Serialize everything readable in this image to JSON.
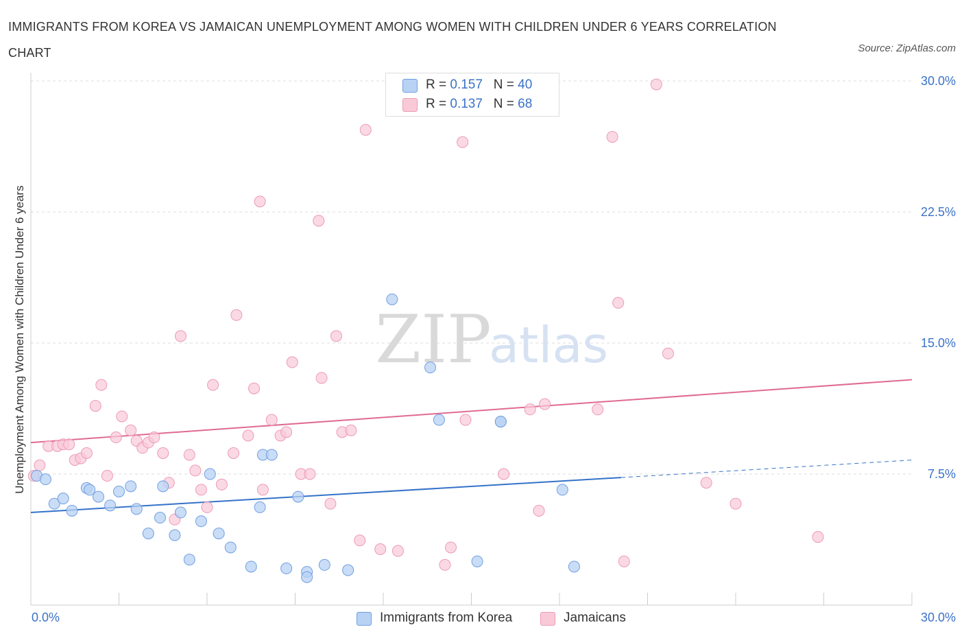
{
  "title": "IMMIGRANTS FROM KOREA VS JAMAICAN UNEMPLOYMENT AMONG WOMEN WITH CHILDREN UNDER 6 YEARS CORRELATION CHART",
  "source": "Source: ZipAtlas.com",
  "watermark": {
    "zip": "ZIP",
    "atlas": "atlas"
  },
  "legend": {
    "korea": {
      "r_label": "R =",
      "r_value": "0.157",
      "n_label": "N =",
      "n_value": "40"
    },
    "jamaica": {
      "r_label": "R =",
      "r_value": "0.137",
      "n_label": "N =",
      "n_value": "68"
    }
  },
  "colors": {
    "korea_fill": "#b8d2f4",
    "korea_stroke": "#6f9ee0",
    "korea_line": "#3472c8",
    "jamaica_fill": "#f9c9d8",
    "jamaica_stroke": "#ec9ab4",
    "jamaica_line": "#e06a92",
    "grid": "#dddddd",
    "tick_text": "#3a72c8"
  },
  "chart_data": {
    "type": "scatter",
    "title": "IMMIGRANTS FROM KOREA VS JAMAICAN UNEMPLOYMENT AMONG WOMEN WITH CHILDREN UNDER 6 YEARS CORRELATION CHART",
    "xlabel": "",
    "ylabel": "Unemployment Among Women with Children Under 6 years",
    "xlim": [
      0,
      30
    ],
    "ylim": [
      0,
      30
    ],
    "x_tick_labels": [
      "0.0%",
      "30.0%"
    ],
    "y_tick_labels": [
      "7.5%",
      "15.0%",
      "22.5%",
      "30.0%"
    ],
    "y_ticks": [
      7.5,
      15.0,
      22.5,
      30.0
    ],
    "grid": true,
    "legend_position": "top-center",
    "series": [
      {
        "name": "Immigrants from Korea",
        "r": 0.157,
        "n": 40,
        "trend": {
          "x0": 0,
          "y0": 5.3,
          "x1": 20.1,
          "y1": 7.3,
          "dashed_to_x": 30,
          "dashed_to_y": 8.3
        },
        "points": [
          [
            0.2,
            7.4
          ],
          [
            0.5,
            7.2
          ],
          [
            0.8,
            5.8
          ],
          [
            1.1,
            6.1
          ],
          [
            1.4,
            5.4
          ],
          [
            1.9,
            6.7
          ],
          [
            2.0,
            6.6
          ],
          [
            2.3,
            6.2
          ],
          [
            2.7,
            5.7
          ],
          [
            3.0,
            6.5
          ],
          [
            3.4,
            6.8
          ],
          [
            3.6,
            5.5
          ],
          [
            4.0,
            4.1
          ],
          [
            4.4,
            5.0
          ],
          [
            4.5,
            6.8
          ],
          [
            4.9,
            4.0
          ],
          [
            5.1,
            5.3
          ],
          [
            5.4,
            2.6
          ],
          [
            5.8,
            4.8
          ],
          [
            6.1,
            7.5
          ],
          [
            6.4,
            4.1
          ],
          [
            6.8,
            3.3
          ],
          [
            7.5,
            2.2
          ],
          [
            7.8,
            5.6
          ],
          [
            7.9,
            8.6
          ],
          [
            8.2,
            8.6
          ],
          [
            8.7,
            2.1
          ],
          [
            9.1,
            6.2
          ],
          [
            9.4,
            1.9
          ],
          [
            9.4,
            1.6
          ],
          [
            10.0,
            2.3
          ],
          [
            10.8,
            2.0
          ],
          [
            12.3,
            17.5
          ],
          [
            13.6,
            13.6
          ],
          [
            13.9,
            10.6
          ],
          [
            15.2,
            2.5
          ],
          [
            16.0,
            10.5
          ],
          [
            16.0,
            10.5
          ],
          [
            18.1,
            6.6
          ],
          [
            18.5,
            2.2
          ]
        ]
      },
      {
        "name": "Jamaicans",
        "r": 0.137,
        "n": 68,
        "trend": {
          "x0": 0,
          "y0": 9.3,
          "x1": 30,
          "y1": 12.9
        },
        "points": [
          [
            0.1,
            7.4
          ],
          [
            0.3,
            8.0
          ],
          [
            0.6,
            9.1
          ],
          [
            0.9,
            9.1
          ],
          [
            1.1,
            9.2
          ],
          [
            1.3,
            9.2
          ],
          [
            1.5,
            8.3
          ],
          [
            1.7,
            8.4
          ],
          [
            1.9,
            8.7
          ],
          [
            2.2,
            11.4
          ],
          [
            2.4,
            12.6
          ],
          [
            2.6,
            7.4
          ],
          [
            2.9,
            9.6
          ],
          [
            3.1,
            10.8
          ],
          [
            3.4,
            10.0
          ],
          [
            3.6,
            9.4
          ],
          [
            3.8,
            9.0
          ],
          [
            4.0,
            9.3
          ],
          [
            4.2,
            9.6
          ],
          [
            4.5,
            8.7
          ],
          [
            4.7,
            7.0
          ],
          [
            4.9,
            4.9
          ],
          [
            5.1,
            15.4
          ],
          [
            5.4,
            8.6
          ],
          [
            5.6,
            7.7
          ],
          [
            5.8,
            6.6
          ],
          [
            6.0,
            5.6
          ],
          [
            6.2,
            12.6
          ],
          [
            6.5,
            6.9
          ],
          [
            6.9,
            8.7
          ],
          [
            7.0,
            16.6
          ],
          [
            7.4,
            9.7
          ],
          [
            7.6,
            12.4
          ],
          [
            7.8,
            23.1
          ],
          [
            7.9,
            6.6
          ],
          [
            8.2,
            10.6
          ],
          [
            8.5,
            9.7
          ],
          [
            8.7,
            9.9
          ],
          [
            8.9,
            13.9
          ],
          [
            9.2,
            7.5
          ],
          [
            9.5,
            7.5
          ],
          [
            9.8,
            22.0
          ],
          [
            9.9,
            13.0
          ],
          [
            10.2,
            5.8
          ],
          [
            10.4,
            15.4
          ],
          [
            10.6,
            9.9
          ],
          [
            10.9,
            10.0
          ],
          [
            11.2,
            3.7
          ],
          [
            11.4,
            27.2
          ],
          [
            11.9,
            3.2
          ],
          [
            12.5,
            3.1
          ],
          [
            14.1,
            2.3
          ],
          [
            14.3,
            3.3
          ],
          [
            14.7,
            26.5
          ],
          [
            14.8,
            10.6
          ],
          [
            16.1,
            7.5
          ],
          [
            17.0,
            11.2
          ],
          [
            17.3,
            5.4
          ],
          [
            17.5,
            11.5
          ],
          [
            19.3,
            11.2
          ],
          [
            19.8,
            26.8
          ],
          [
            20.0,
            17.3
          ],
          [
            20.2,
            2.5
          ],
          [
            21.3,
            29.8
          ],
          [
            21.7,
            14.4
          ],
          [
            23.0,
            7.0
          ],
          [
            24.0,
            5.8
          ],
          [
            26.8,
            3.9
          ]
        ]
      }
    ]
  }
}
